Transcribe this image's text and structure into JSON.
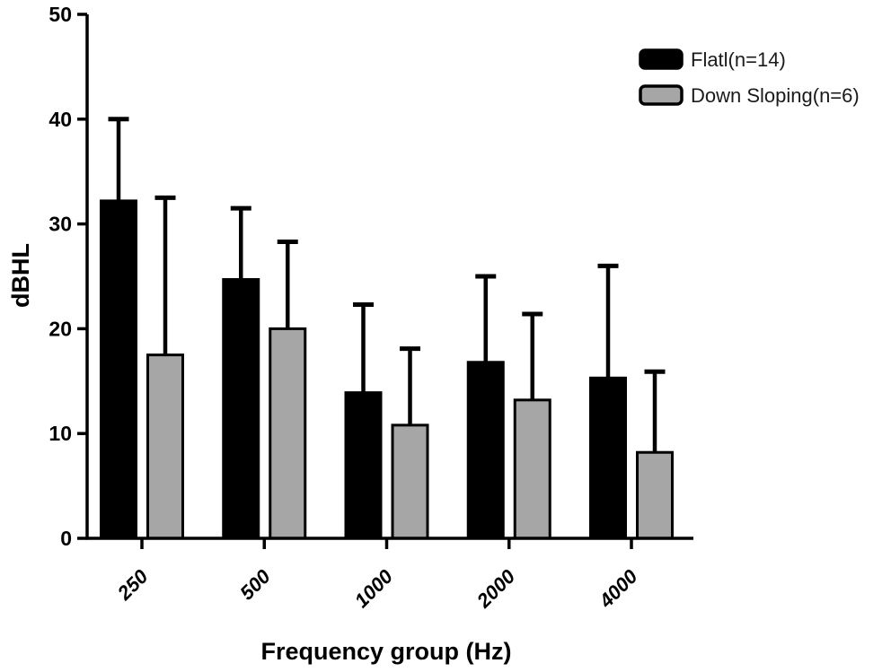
{
  "figure": {
    "background": "#ffffff",
    "axis_color": "#000000"
  },
  "chart_data": {
    "type": "bar",
    "title": "",
    "xlabel": "Frequency group (Hz)",
    "ylabel": "dBHL",
    "categories": [
      "250",
      "500",
      "1000",
      "2000",
      "4000"
    ],
    "series": [
      {
        "name": "Flatl(n=14)",
        "color": "#000000",
        "border_color": "#000000",
        "values": [
          32.2,
          24.7,
          13.9,
          16.8,
          15.3
        ],
        "error_upper": [
          7.8,
          6.8,
          8.4,
          8.2,
          10.7
        ]
      },
      {
        "name": "Down Sloping(n=6)",
        "color": "#a6a6a6",
        "border_color": "#000000",
        "values": [
          17.5,
          20.0,
          10.8,
          13.2,
          8.2
        ],
        "error_upper": [
          15.0,
          8.3,
          7.3,
          8.2,
          7.7
        ]
      }
    ],
    "ylim": [
      0,
      50
    ],
    "yticks": [
      0,
      10,
      20,
      30,
      40,
      50
    ],
    "grid": false,
    "legend_position": "top-right",
    "error_bars": "upper-only",
    "xtick_style": "rotated-45-italic"
  }
}
